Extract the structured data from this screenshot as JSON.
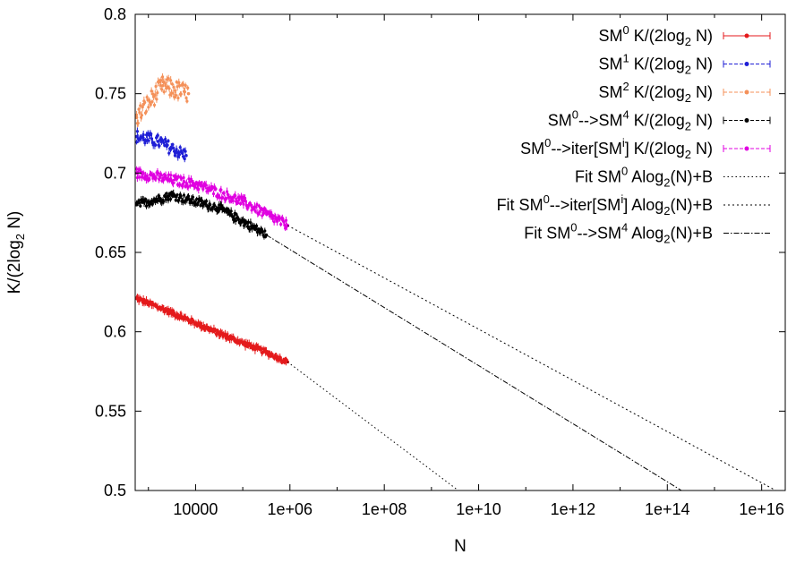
{
  "chart_data": {
    "type": "scatter",
    "xlabel": "N",
    "ylabel": "K/(2log",
    "ylabel_sub": "2",
    "ylabel_tail": " N)",
    "x_scale": "log10",
    "xlim_log10": [
      2.72,
      16.5
    ],
    "ylim": [
      0.5,
      0.8
    ],
    "x_ticks": [
      {
        "log10": 4,
        "label": "10000"
      },
      {
        "log10": 6,
        "label": "1e+06"
      },
      {
        "log10": 8,
        "label": "1e+08"
      },
      {
        "log10": 10,
        "label": "1e+10"
      },
      {
        "log10": 12,
        "label": "1e+12"
      },
      {
        "log10": 14,
        "label": "1e+14"
      },
      {
        "log10": 16,
        "label": "1e+16"
      }
    ],
    "y_ticks": [
      {
        "value": 0.5,
        "label": "0.5"
      },
      {
        "value": 0.55,
        "label": "0.55"
      },
      {
        "value": 0.6,
        "label": "0.6"
      },
      {
        "value": 0.65,
        "label": "0.65"
      },
      {
        "value": 0.7,
        "label": "0.7"
      },
      {
        "value": 0.75,
        "label": "0.75"
      },
      {
        "value": 0.8,
        "label": "0.8"
      }
    ],
    "grid": false,
    "legend_position": "top-right",
    "series": [
      {
        "name": "SM⁰ K/(2log₂ N)",
        "legend": [
          {
            "t": "SM"
          },
          {
            "t": "0",
            "s": "sup"
          },
          {
            "t": " K/(2log"
          },
          {
            "t": "2",
            "s": "sub"
          },
          {
            "t": " N)"
          }
        ],
        "style": "errorbar",
        "color": "#e41a1c",
        "log10_x_range": [
          2.75,
          5.95
        ],
        "y_start": 0.621,
        "y_end": 0.581,
        "jitter": 0.0015,
        "points": [
          [
            2.75,
            0.621
          ],
          [
            3.5,
            0.612
          ],
          [
            4.5,
            0.599
          ],
          [
            5.5,
            0.587
          ],
          [
            5.95,
            0.581
          ]
        ]
      },
      {
        "name": "SM¹ K/(2log₂ N)",
        "legend": [
          {
            "t": "SM"
          },
          {
            "t": "1",
            "s": "sup"
          },
          {
            "t": " K/(2log"
          },
          {
            "t": "2",
            "s": "sub"
          },
          {
            "t": " N)"
          }
        ],
        "style": "errorbar",
        "color": "#1f1fd6",
        "log10_x_range": [
          2.75,
          3.8
        ],
        "y_start": 0.723,
        "y_end": 0.711,
        "jitter": 0.004,
        "points": [
          [
            2.75,
            0.723
          ],
          [
            3.2,
            0.72
          ],
          [
            3.8,
            0.711
          ]
        ]
      },
      {
        "name": "SM² K/(2log₂ N)",
        "legend": [
          {
            "t": "SM"
          },
          {
            "t": "2",
            "s": "sup"
          },
          {
            "t": " K/(2log"
          },
          {
            "t": "2",
            "s": "sub"
          },
          {
            "t": " N)"
          }
        ],
        "style": "errorbar",
        "color": "#f4915a",
        "log10_x_range": [
          2.75,
          3.85
        ],
        "y_start": 0.738,
        "y_end": 0.752,
        "jitter": 0.006,
        "points": [
          [
            2.75,
            0.735
          ],
          [
            3.3,
            0.755
          ],
          [
            3.85,
            0.75
          ]
        ]
      },
      {
        "name": "SM⁰-->SM⁴ K/(2log₂ N)",
        "legend": [
          {
            "t": "SM"
          },
          {
            "t": "0",
            "s": "sup"
          },
          {
            "t": "-->SM"
          },
          {
            "t": "4",
            "s": "sup"
          },
          {
            "t": " K/(2log"
          },
          {
            "t": "2",
            "s": "sub"
          },
          {
            "t": " N)"
          }
        ],
        "style": "errorbar",
        "color": "#000000",
        "log10_x_range": [
          2.75,
          5.5
        ],
        "y_start": 0.68,
        "y_end": 0.661,
        "jitter": 0.0025,
        "points": [
          [
            2.75,
            0.68
          ],
          [
            3.5,
            0.686
          ],
          [
            4.5,
            0.678
          ],
          [
            5.5,
            0.661
          ]
        ]
      },
      {
        "name": "SM⁰-->iter[SMⁱ] K/(2log₂ N)",
        "legend": [
          {
            "t": "SM"
          },
          {
            "t": "0",
            "s": "sup"
          },
          {
            "t": "-->iter[SM"
          },
          {
            "t": "i",
            "s": "sup"
          },
          {
            "t": "] K/(2log"
          },
          {
            "t": "2",
            "s": "sub"
          },
          {
            "t": " N)"
          }
        ],
        "style": "errorbar",
        "color": "#e000e0",
        "log10_x_range": [
          2.75,
          5.95
        ],
        "y_start": 0.7,
        "y_end": 0.667,
        "jitter": 0.003,
        "points": [
          [
            2.75,
            0.7
          ],
          [
            4.0,
            0.693
          ],
          [
            5.0,
            0.682
          ],
          [
            5.95,
            0.667
          ]
        ]
      },
      {
        "name": "Fit SM⁰ Alog₂(N)+B",
        "legend": [
          {
            "t": "Fit SM"
          },
          {
            "t": "0",
            "s": "sup"
          },
          {
            "t": " Alog"
          },
          {
            "t": "2",
            "s": "sub"
          },
          {
            "t": "(N)+B"
          }
        ],
        "style": "line",
        "color": "#000000",
        "dash": "1.5,3",
        "points": [
          [
            5.95,
            0.581
          ],
          [
            9.57,
            0.5
          ]
        ]
      },
      {
        "name": "Fit SM⁰-->iter[SMⁱ] Alog₂(N)+B",
        "legend": [
          {
            "t": "Fit SM"
          },
          {
            "t": "0",
            "s": "sup"
          },
          {
            "t": "-->iter[SM"
          },
          {
            "t": "i",
            "s": "sup"
          },
          {
            "t": "] Alog"
          },
          {
            "t": "2",
            "s": "sub"
          },
          {
            "t": "(N)+B"
          }
        ],
        "style": "line",
        "color": "#000000",
        "dash": "2,3",
        "points": [
          [
            5.95,
            0.667
          ],
          [
            16.3,
            0.5
          ]
        ]
      },
      {
        "name": "Fit  SM⁰-->SM⁴ Alog₂(N)+B",
        "legend": [
          {
            "t": "Fit  SM"
          },
          {
            "t": "0",
            "s": "sup"
          },
          {
            "t": "-->SM"
          },
          {
            "t": "4",
            "s": "sup"
          },
          {
            "t": " Alog"
          },
          {
            "t": "2",
            "s": "sub"
          },
          {
            "t": "(N)+B"
          }
        ],
        "style": "line",
        "color": "#000000",
        "dash": "6,2,1.5,2",
        "points": [
          [
            5.5,
            0.661
          ],
          [
            14.3,
            0.5
          ]
        ]
      }
    ]
  }
}
